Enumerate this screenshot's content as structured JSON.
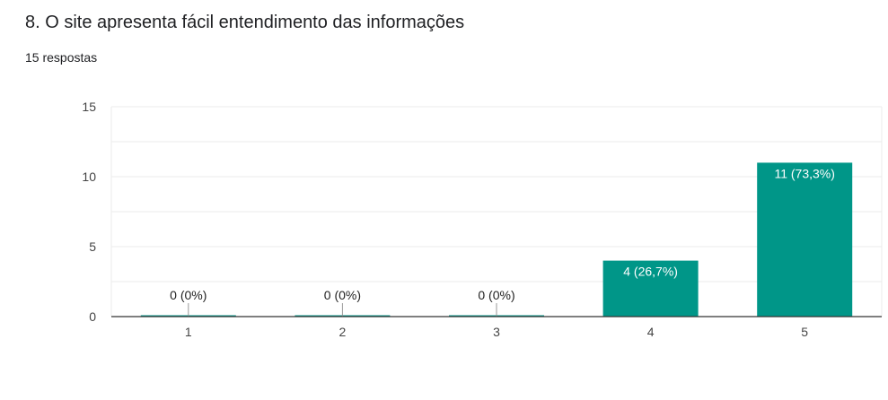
{
  "header": {
    "title": "8. O site apresenta fácil entendimento das informações",
    "responses": "15 respostas"
  },
  "colors": {
    "bar": "#009688",
    "grid": "#ebebeb",
    "axis": "#333333"
  },
  "chart_data": {
    "type": "bar",
    "categories": [
      "1",
      "2",
      "3",
      "4",
      "5"
    ],
    "values": [
      0,
      0,
      0,
      4,
      11
    ],
    "data_labels": [
      "0 (0%)",
      "0 (0%)",
      "0 (0%)",
      "4 (26,7%)",
      "11 (73,3%)"
    ],
    "yticks": [
      0,
      5,
      10,
      15
    ],
    "ylim": [
      0,
      15
    ],
    "grid": true,
    "title": "",
    "xlabel": "",
    "ylabel": ""
  }
}
